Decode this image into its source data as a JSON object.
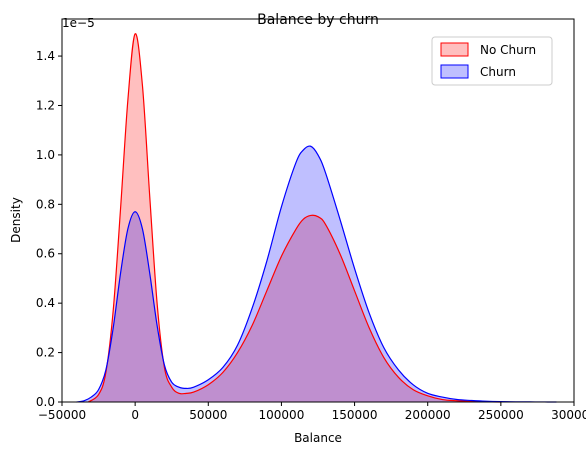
{
  "chart_data": {
    "type": "area",
    "title": "Balance by churn",
    "xlabel": "Balance",
    "ylabel": "Density",
    "offset_label": "1e−5",
    "xlim": [
      -50000,
      300000
    ],
    "ylim": [
      0,
      1.55
    ],
    "xticks": [
      -50000,
      0,
      50000,
      100000,
      150000,
      200000,
      250000,
      300000
    ],
    "xtick_labels": [
      "−50000",
      "0",
      "50000",
      "100000",
      "150000",
      "200000",
      "250000",
      "300000"
    ],
    "yticks": [
      0.0,
      0.2,
      0.4,
      0.6,
      0.8,
      1.0,
      1.2,
      1.4
    ],
    "ytick_labels": [
      "0.0",
      "0.2",
      "0.4",
      "0.6",
      "0.8",
      "1.0",
      "1.2",
      "1.4"
    ],
    "grid": false,
    "legend": "top-right",
    "series": [
      {
        "name": "No Churn",
        "color": "#ff0000",
        "fill": "rgba(255,0,0,0.25)",
        "x": [
          -32000,
          -25000,
          -20000,
          -15000,
          -10000,
          -5000,
          0,
          5000,
          10000,
          15000,
          20000,
          25000,
          30000,
          35000,
          40000,
          50000,
          60000,
          70000,
          80000,
          90000,
          100000,
          110000,
          115000,
          120000,
          125000,
          130000,
          140000,
          150000,
          160000,
          170000,
          180000,
          190000,
          200000,
          210000,
          220000,
          230000,
          240000,
          250000
        ],
        "y": [
          0.0,
          0.03,
          0.12,
          0.37,
          0.78,
          1.22,
          1.49,
          1.28,
          0.83,
          0.4,
          0.14,
          0.06,
          0.035,
          0.035,
          0.04,
          0.07,
          0.12,
          0.2,
          0.31,
          0.45,
          0.59,
          0.7,
          0.74,
          0.755,
          0.75,
          0.72,
          0.6,
          0.45,
          0.3,
          0.18,
          0.1,
          0.05,
          0.025,
          0.01,
          0.005,
          0.002,
          0.001,
          0.0
        ]
      },
      {
        "name": "Churn",
        "color": "#0000ff",
        "fill": "rgba(0,0,255,0.25)",
        "x": [
          -40000,
          -35000,
          -30000,
          -25000,
          -20000,
          -15000,
          -10000,
          -5000,
          0,
          5000,
          10000,
          15000,
          20000,
          25000,
          30000,
          35000,
          40000,
          50000,
          60000,
          70000,
          80000,
          90000,
          100000,
          110000,
          115000,
          120000,
          125000,
          130000,
          140000,
          150000,
          160000,
          170000,
          180000,
          190000,
          200000,
          210000,
          220000,
          230000,
          240000,
          250000,
          260000,
          270000,
          280000,
          288000
        ],
        "y": [
          0.0,
          0.005,
          0.02,
          0.05,
          0.13,
          0.3,
          0.52,
          0.7,
          0.77,
          0.7,
          0.52,
          0.31,
          0.15,
          0.08,
          0.06,
          0.055,
          0.06,
          0.09,
          0.14,
          0.23,
          0.38,
          0.57,
          0.79,
          0.97,
          1.02,
          1.035,
          1.0,
          0.93,
          0.74,
          0.54,
          0.36,
          0.22,
          0.13,
          0.07,
          0.035,
          0.02,
          0.01,
          0.006,
          0.003,
          0.0015,
          0.0008,
          0.0004,
          0.0002,
          0.0
        ]
      }
    ]
  }
}
